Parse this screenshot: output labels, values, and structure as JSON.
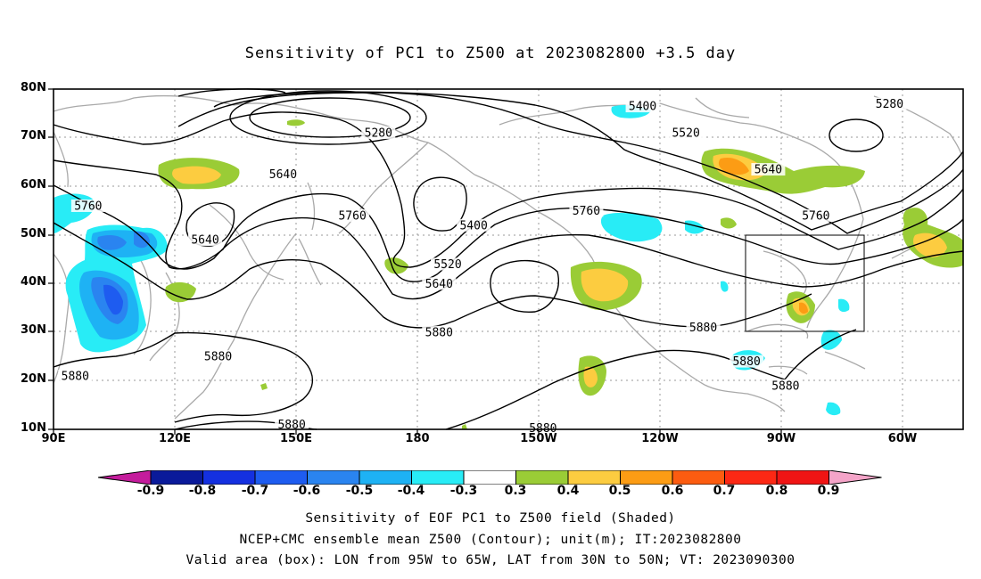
{
  "title": "Sensitivity of PC1 to Z500 at 2023082800 +3.5 day",
  "lat_labels": [
    "80N",
    "70N",
    "60N",
    "50N",
    "40N",
    "30N",
    "20N",
    "10N"
  ],
  "lon_labels": [
    "90E",
    "120E",
    "150E",
    "180",
    "150W",
    "120W",
    "90W",
    "60W"
  ],
  "contour_labels": [
    {
      "text": "5280",
      "lon": 165,
      "lat": 71
    },
    {
      "text": "5280",
      "lon": -77,
      "lat": 77
    },
    {
      "text": "5400",
      "lon": -134,
      "lat": 76.5
    },
    {
      "text": "5400",
      "lon": -50,
      "lat": 57.5
    },
    {
      "text": "5400",
      "lon": -173,
      "lat": 52
    },
    {
      "text": "5520",
      "lon": -124,
      "lat": 71
    },
    {
      "text": "5520",
      "lon": -179,
      "lat": 44
    },
    {
      "text": "5640",
      "lon": 143,
      "lat": 62.5
    },
    {
      "text": "5640",
      "lon": -105,
      "lat": 63.5
    },
    {
      "text": "5640",
      "lon": -181,
      "lat": 40
    },
    {
      "text": "5640",
      "lon": 125,
      "lat": 49
    },
    {
      "text": "5760",
      "lon": 98,
      "lat": 56
    },
    {
      "text": "5760",
      "lon": 159,
      "lat": 54
    },
    {
      "text": "5760",
      "lon": -147,
      "lat": 55
    },
    {
      "text": "5760",
      "lon": -94,
      "lat": 54
    },
    {
      "text": "5880",
      "lon": -181,
      "lat": 30
    },
    {
      "text": "5880",
      "lon": -120,
      "lat": 31
    },
    {
      "text": "5880",
      "lon": -110,
      "lat": 24
    },
    {
      "text": "5880",
      "lon": -101,
      "lat": 19
    },
    {
      "text": "5880",
      "lon": 128,
      "lat": 25
    },
    {
      "text": "5880",
      "lon": 95,
      "lat": 21
    },
    {
      "text": "5880",
      "lon": 145,
      "lat": 11
    },
    {
      "text": "5880",
      "lon": -157,
      "lat": 10.3
    }
  ],
  "colorbar": {
    "labels": [
      "-0.9",
      "-0.8",
      "-0.7",
      "-0.6",
      "-0.5",
      "-0.4",
      "-0.3",
      "0.3",
      "0.4",
      "0.5",
      "0.6",
      "0.7",
      "0.8",
      "0.9"
    ],
    "colors": [
      "#0a1a9a",
      "#1430e0",
      "#1e5cf0",
      "#2a84f0",
      "#1eb2f4",
      "#28ecf6",
      "#ffffff",
      "#9acc36",
      "#fccc40",
      "#fc9c14",
      "#fc5c10",
      "#fc2814",
      "#f01414"
    ],
    "low_extend": "#c41c9c",
    "high_extend": "#f4a4c8"
  },
  "valid_box": {
    "lon_west": -95,
    "lon_east": -65,
    "lat_south": 30,
    "lat_north": 50
  },
  "footer": {
    "line1": "Sensitivity of EOF PC1 to Z500 field (Shaded)",
    "line2": "NCEP+CMC ensemble mean Z500 (Contour); unit(m); IT:2023082800",
    "line3": "Valid area (box): LON from 95W to 65W, LAT from 30N to 50N; VT: 2023090300"
  }
}
